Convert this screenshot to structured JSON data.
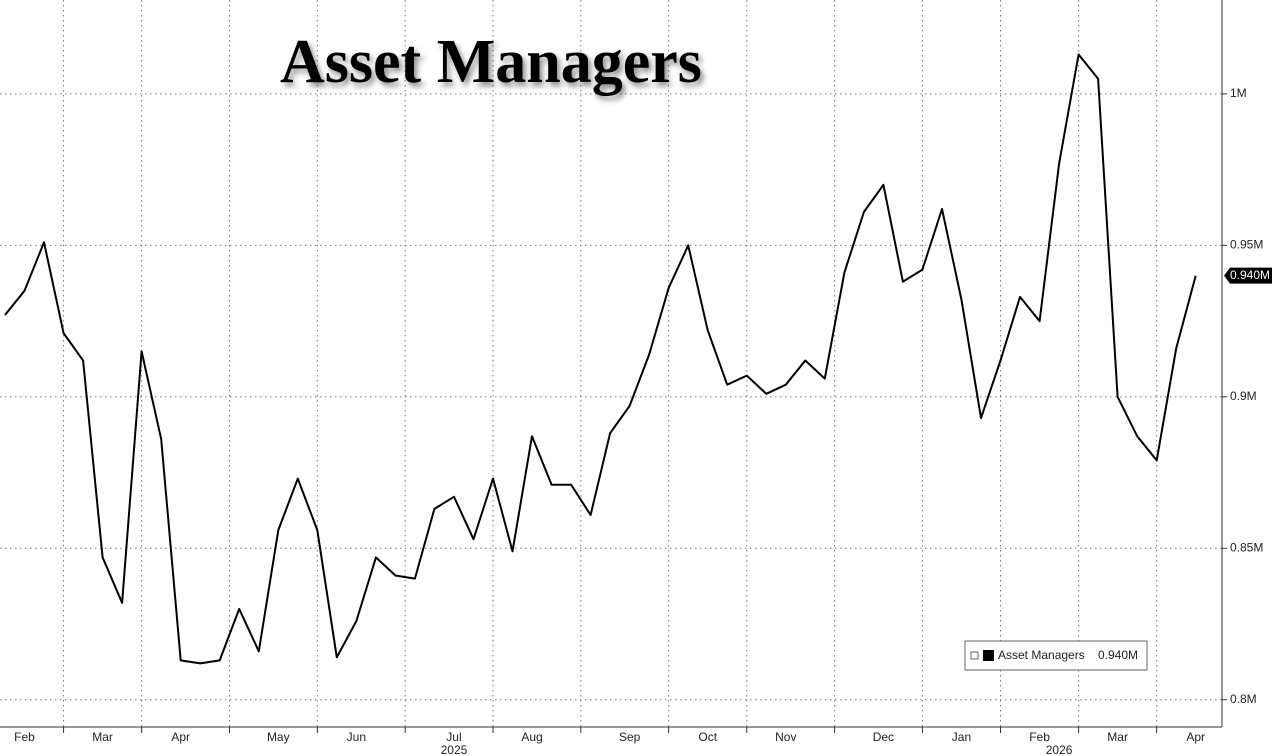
{
  "chart_data": {
    "type": "line",
    "title": "Asset Managers",
    "categories": [
      null,
      "Feb",
      null,
      null,
      null,
      "Mar",
      null,
      null,
      null,
      "Apr",
      null,
      null,
      null,
      null,
      "May",
      null,
      null,
      null,
      "Jun",
      null,
      null,
      null,
      null,
      "Jul",
      null,
      null,
      null,
      "Aug",
      null,
      null,
      null,
      null,
      "Sep",
      null,
      null,
      null,
      "Oct",
      null,
      null,
      null,
      "Nov",
      null,
      null,
      null,
      null,
      "Dec",
      null,
      null,
      null,
      "Jan",
      null,
      null,
      null,
      "Feb",
      null,
      null,
      null,
      "Mar",
      null,
      null,
      null,
      "Apr"
    ],
    "year_labels": [
      {
        "category": 23,
        "label": "2025"
      },
      {
        "category": 54,
        "label": "2026"
      }
    ],
    "series": [
      {
        "name": "Asset Managers",
        "color": "#000000",
        "last_label": "0.940M",
        "values": [
          0.927,
          0.935,
          0.951,
          0.921,
          0.912,
          0.847,
          0.832,
          0.915,
          0.886,
          0.813,
          0.812,
          0.813,
          0.83,
          0.816,
          0.856,
          0.873,
          0.856,
          0.814,
          0.826,
          0.847,
          0.841,
          0.84,
          0.863,
          0.867,
          0.853,
          0.873,
          0.849,
          0.887,
          0.871,
          0.871,
          0.861,
          0.888,
          0.897,
          0.914,
          0.936,
          0.95,
          0.922,
          0.904,
          0.907,
          0.901,
          0.904,
          0.912,
          0.906,
          0.941,
          0.961,
          0.97,
          0.938,
          0.942,
          0.962,
          0.932,
          0.893,
          0.912,
          0.933,
          0.925,
          0.977,
          1.013,
          1.005,
          0.9,
          0.887,
          0.879,
          0.916,
          0.94
        ]
      }
    ],
    "ylim": [
      0.791,
      1.031
    ],
    "yticks": [
      {
        "value": 0.8,
        "label": "0.8M"
      },
      {
        "value": 0.85,
        "label": "0.85M"
      },
      {
        "value": 0.9,
        "label": "0.9M"
      },
      {
        "value": 0.95,
        "label": "0.95M"
      },
      {
        "value": 1,
        "label": "1M"
      }
    ],
    "grid": true,
    "legend": "lower right"
  }
}
